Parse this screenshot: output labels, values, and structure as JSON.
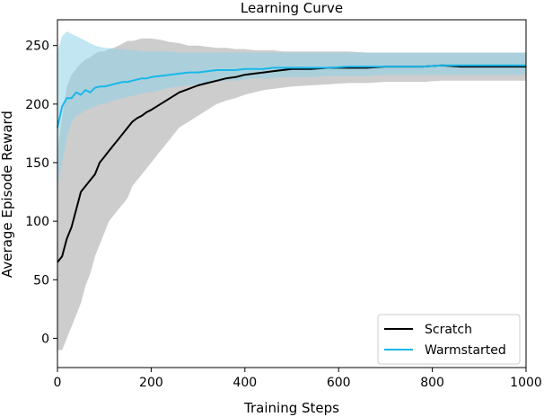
{
  "chart_data": {
    "type": "line",
    "title": "Learning Curve",
    "xlabel": "Training Steps",
    "ylabel": "Average Episode Reward",
    "xlim": [
      0,
      1000
    ],
    "ylim": [
      -25,
      272
    ],
    "xticks": [
      0,
      200,
      400,
      600,
      800,
      1000
    ],
    "yticks": [
      0,
      50,
      100,
      150,
      200,
      250
    ],
    "grid": false,
    "legend_position": "bottom-right",
    "series": [
      {
        "name": "Scratch",
        "color": "#000000",
        "band_color": "#c8c8c8",
        "x": [
          0,
          10,
          20,
          30,
          40,
          50,
          60,
          70,
          80,
          90,
          100,
          110,
          120,
          130,
          140,
          150,
          160,
          170,
          180,
          190,
          200,
          220,
          240,
          260,
          280,
          300,
          320,
          340,
          360,
          380,
          400,
          420,
          440,
          460,
          480,
          500,
          540,
          580,
          620,
          660,
          700,
          740,
          780,
          820,
          860,
          900,
          940,
          980,
          1000
        ],
        "values": [
          65,
          70,
          85,
          95,
          110,
          125,
          130,
          135,
          140,
          150,
          155,
          160,
          165,
          170,
          175,
          180,
          185,
          188,
          190,
          193,
          195,
          200,
          205,
          210,
          213,
          216,
          218,
          220,
          222,
          223,
          225,
          226,
          227,
          228,
          229,
          230,
          230,
          231,
          231,
          231,
          232,
          232,
          232,
          233,
          232,
          232,
          232,
          232,
          232
        ],
        "band_low": [
          -10,
          -10,
          0,
          10,
          20,
          30,
          45,
          55,
          70,
          80,
          90,
          100,
          105,
          110,
          115,
          120,
          130,
          135,
          140,
          145,
          150,
          160,
          170,
          180,
          185,
          190,
          195,
          200,
          203,
          205,
          208,
          210,
          212,
          213,
          214,
          215,
          216,
          217,
          218,
          218,
          219,
          219,
          219,
          220,
          220,
          220,
          220,
          220,
          220
        ],
        "band_high": [
          160,
          190,
          215,
          225,
          230,
          235,
          238,
          240,
          243,
          245,
          245,
          247,
          248,
          250,
          252,
          254,
          254,
          255,
          256,
          256,
          256,
          255,
          253,
          252,
          250,
          250,
          249,
          248,
          248,
          247,
          247,
          246,
          246,
          246,
          245,
          245,
          245,
          245,
          245,
          244,
          244,
          244,
          244,
          244,
          244,
          244,
          244,
          244,
          244
        ]
      },
      {
        "name": "Warmstarted",
        "color": "#1ab7ea",
        "band_color": "#8fd3ea",
        "x": [
          0,
          10,
          20,
          30,
          40,
          50,
          60,
          70,
          80,
          90,
          100,
          110,
          120,
          130,
          140,
          150,
          160,
          170,
          180,
          190,
          200,
          220,
          240,
          260,
          280,
          300,
          320,
          340,
          360,
          380,
          400,
          420,
          440,
          460,
          480,
          500,
          540,
          580,
          620,
          660,
          700,
          740,
          780,
          820,
          860,
          900,
          940,
          980,
          1000
        ],
        "values": [
          180,
          198,
          205,
          205,
          210,
          208,
          212,
          210,
          214,
          215,
          215,
          216,
          217,
          218,
          219,
          219,
          220,
          221,
          222,
          222,
          223,
          224,
          225,
          226,
          227,
          227,
          228,
          229,
          229,
          229,
          230,
          230,
          230,
          231,
          231,
          231,
          231,
          231,
          232,
          232,
          232,
          232,
          232,
          233,
          233,
          233,
          233,
          233,
          233
        ],
        "band_low": [
          130,
          150,
          170,
          185,
          190,
          192,
          195,
          196,
          198,
          200,
          200,
          202,
          203,
          204,
          205,
          206,
          207,
          208,
          209,
          210,
          210,
          212,
          214,
          215,
          216,
          217,
          218,
          219,
          220,
          220,
          221,
          222,
          222,
          222,
          223,
          223,
          223,
          224,
          224,
          224,
          225,
          225,
          225,
          225,
          225,
          225,
          225,
          225,
          225
        ],
        "band_high": [
          245,
          258,
          262,
          260,
          258,
          256,
          254,
          252,
          250,
          249,
          248,
          248,
          247,
          247,
          247,
          246,
          246,
          246,
          245,
          245,
          245,
          245,
          245,
          244,
          244,
          244,
          244,
          244,
          244,
          244,
          244,
          244,
          244,
          244,
          244,
          244,
          244,
          244,
          244,
          244,
          244,
          244,
          244,
          244,
          244,
          244,
          244,
          244,
          244
        ]
      }
    ]
  }
}
